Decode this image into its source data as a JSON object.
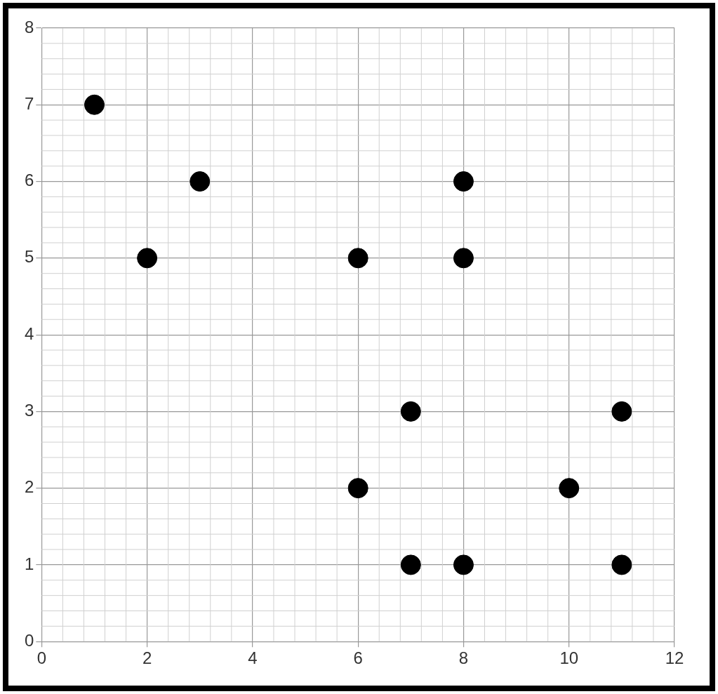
{
  "chart_data": {
    "type": "scatter",
    "x": [
      1,
      2,
      3,
      6,
      8,
      8,
      7,
      11,
      6,
      10,
      7,
      8,
      11
    ],
    "values": [
      7,
      5,
      6,
      5,
      6,
      5,
      3,
      3,
      2,
      2,
      1,
      1,
      1
    ],
    "color": "#000000",
    "marker": "circle",
    "xlim": [
      0,
      12
    ],
    "xticks": [
      0,
      2,
      4,
      6,
      8,
      10,
      12
    ],
    "ylim": [
      0,
      8
    ],
    "yticks": [
      0,
      1,
      2,
      3,
      4,
      5,
      6,
      7,
      8
    ],
    "grid": true,
    "legend": false
  }
}
